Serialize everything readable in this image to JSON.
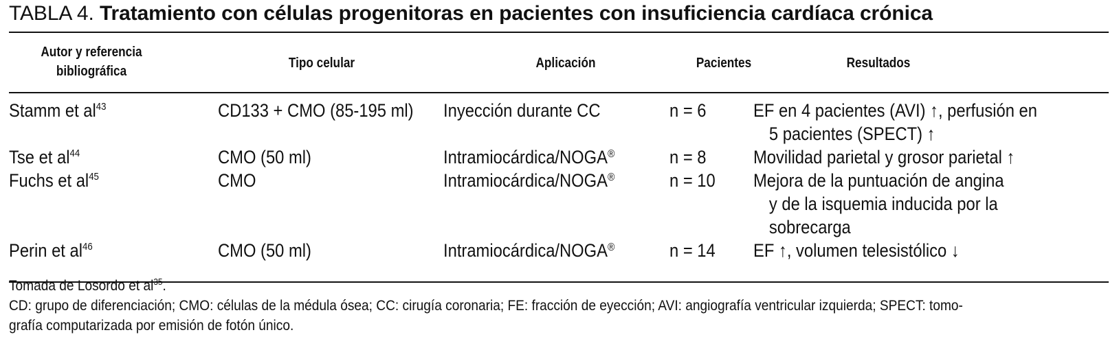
{
  "title": {
    "label": "TABLA 4.",
    "text": "Tratamiento con células progenitoras en pacientes con insuficiencia cardíaca crónica"
  },
  "headers": {
    "autor_line1": "Autor y referencia",
    "autor_line2": "bibliográfica",
    "tipo": "Tipo celular",
    "aplicacion": "Aplicación",
    "pacientes": "Pacientes",
    "resultados": "Resultados"
  },
  "rows": [
    {
      "autor": "Stamm et al",
      "ref": "43",
      "tipo": "CD133 + CMO (85-195 ml)",
      "aplicacion": "Inyección durante CC",
      "aplicacion_reg": "",
      "pacientes": "n = 6",
      "resultados": [
        "EF en 4 pacientes (AVI) ↑, perfusión en",
        "5 pacientes (SPECT) ↑"
      ]
    },
    {
      "autor": "Tse et al",
      "ref": "44",
      "tipo": "CMO (50 ml)",
      "aplicacion": "Intramiocárdica/NOGA",
      "aplicacion_reg": "®",
      "pacientes": "n = 8",
      "resultados": [
        "Movilidad parietal y grosor parietal ↑"
      ]
    },
    {
      "autor": "Fuchs et al",
      "ref": "45",
      "tipo": "CMO",
      "aplicacion": "Intramiocárdica/NOGA",
      "aplicacion_reg": "®",
      "pacientes": "n = 10",
      "resultados": [
        "Mejora de la puntuación de angina",
        "y de la isquemia inducida por la",
        "sobrecarga"
      ]
    },
    {
      "autor": "Perin et al",
      "ref": "46",
      "tipo": "CMO (50 ml)",
      "aplicacion": "Intramiocárdica/NOGA",
      "aplicacion_reg": "®",
      "pacientes": "n = 14",
      "resultados": [
        "EF ↑, volumen telesistólico ↓"
      ]
    }
  ],
  "footnotes": {
    "source": "Tomada de Losordo et al",
    "source_ref": "35",
    "source_end": ".",
    "abbrev_line1": "CD: grupo de diferenciación; CMO: células de la médula ósea; CC: cirugía coronaria; FE: fracción de eyección; AVI: angiografía ventricular izquierda; SPECT: tomo-",
    "abbrev_line2": "grafía computarizada por emisión de fotón único."
  }
}
